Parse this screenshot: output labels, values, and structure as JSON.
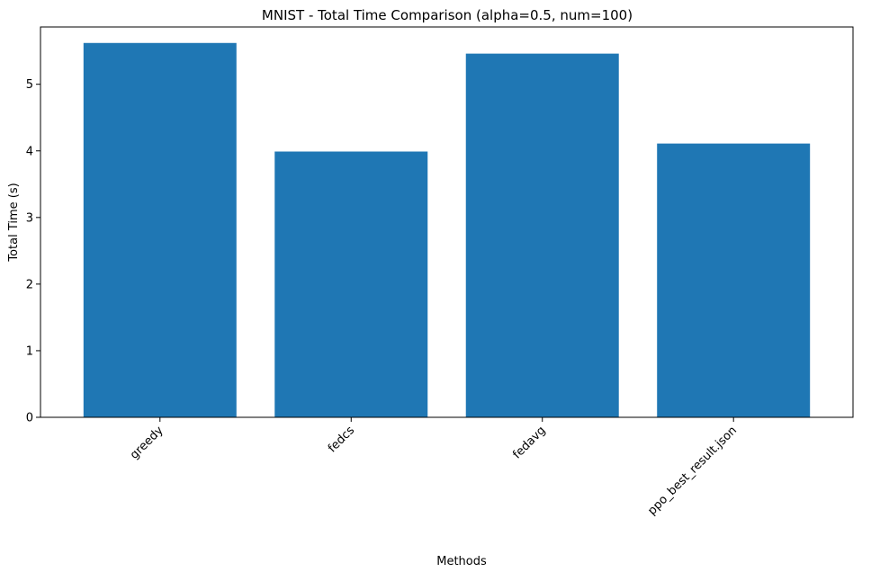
{
  "chart_data": {
    "type": "bar",
    "title": "MNIST - Total Time Comparison (alpha=0.5, num=100)",
    "xlabel": "Methods",
    "ylabel": "Total Time (s)",
    "categories": [
      "greedy",
      "fedcs",
      "fedavg",
      "ppo_best_result.json"
    ],
    "values": [
      5.62,
      3.99,
      5.46,
      4.11
    ],
    "ylim": [
      0,
      5.86
    ],
    "yticks": [
      0,
      1,
      2,
      3,
      4,
      5
    ],
    "xtick_rotation_deg": 45,
    "grid": false,
    "legend": "none",
    "bar_color": "#1f77b4"
  }
}
